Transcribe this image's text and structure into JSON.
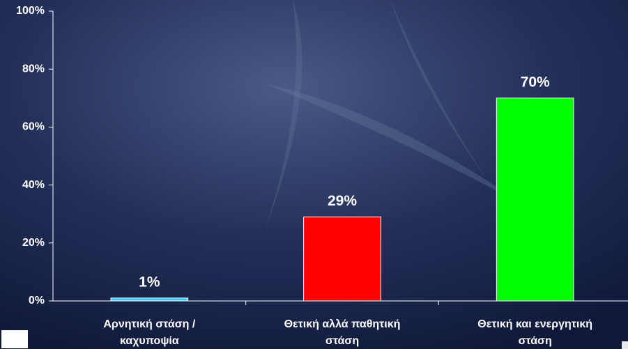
{
  "chart_data": {
    "type": "bar",
    "categories": [
      [
        "Αρνητική στάση /",
        "καχυποψία"
      ],
      [
        "Θετική αλλά παθητική",
        "στάση"
      ],
      [
        "Θετική και ενεργητική",
        "στάση"
      ]
    ],
    "values": [
      1,
      29,
      70
    ],
    "value_labels": [
      "1%",
      "29%",
      "70%"
    ],
    "colors": [
      "#33ccff",
      "#ff0000",
      "#00ff00"
    ],
    "ylim": [
      0,
      100
    ],
    "yticks": [
      {
        "value": 0,
        "label": "0%"
      },
      {
        "value": 20,
        "label": "20%"
      },
      {
        "value": 40,
        "label": "40%"
      },
      {
        "value": 60,
        "label": "60%"
      },
      {
        "value": 80,
        "label": "80%"
      },
      {
        "value": 100,
        "label": "100%"
      }
    ]
  }
}
